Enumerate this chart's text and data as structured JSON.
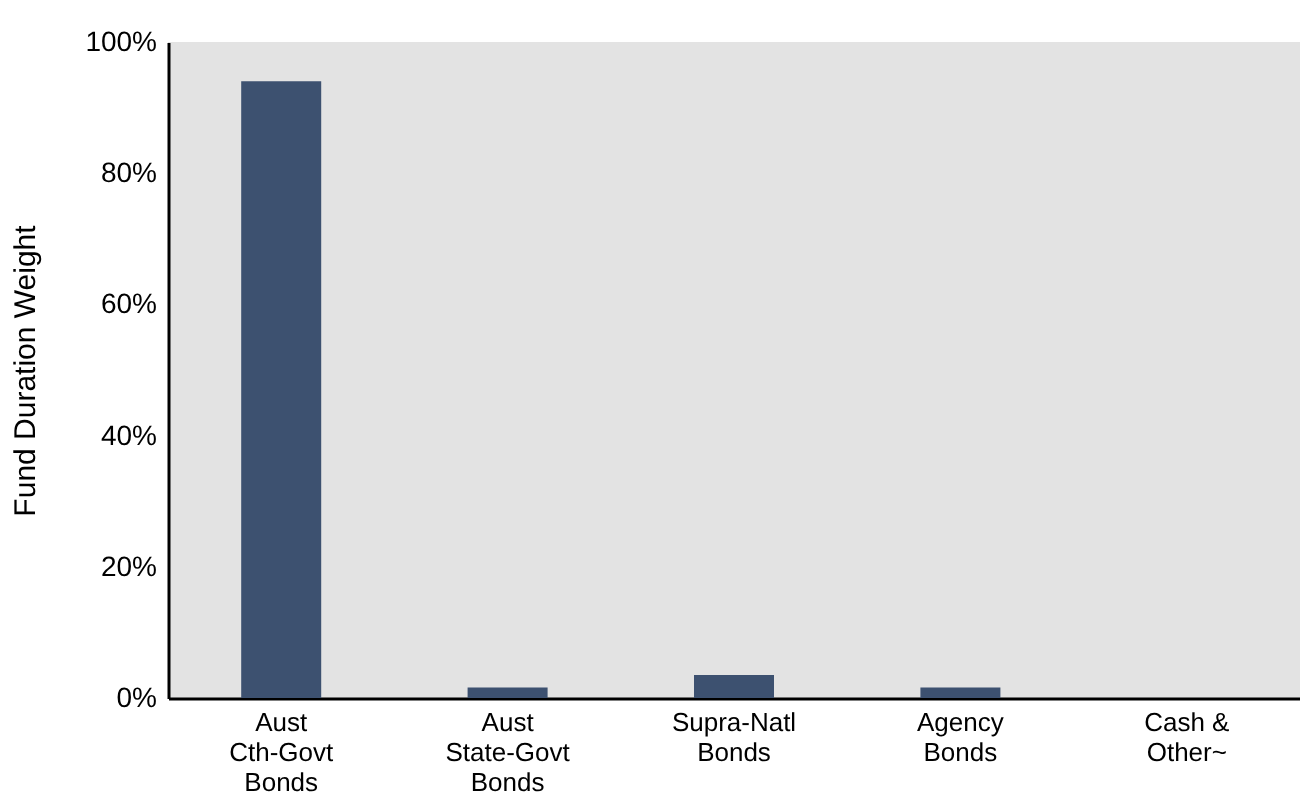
{
  "chart_data": {
    "type": "bar",
    "ylabel": "Fund Duration Weight",
    "categories": [
      "Aust\nCth-Govt\nBonds",
      "Aust\nState-Govt\nBonds",
      "Supra-Natl\nBonds",
      "Agency\nBonds",
      "Cash &\nOther~"
    ],
    "values": [
      94,
      1.6,
      3.5,
      1.6,
      0
    ],
    "color": "#3d5170",
    "ylim": [
      0,
      100
    ],
    "yticks": [
      {
        "value": 0,
        "label": "0%"
      },
      {
        "value": 20,
        "label": "20%"
      },
      {
        "value": 40,
        "label": "40%"
      },
      {
        "value": 60,
        "label": "60%"
      },
      {
        "value": 80,
        "label": "80%"
      },
      {
        "value": 100,
        "label": "100%"
      }
    ],
    "grid": false
  }
}
